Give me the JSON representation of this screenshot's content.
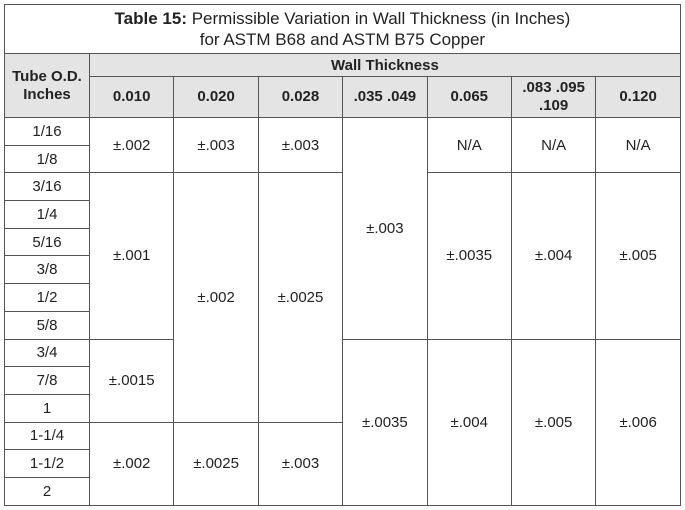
{
  "title": {
    "label": "Table 15:",
    "line1": "Permissible Variation in Wall Thickness (in Inches)",
    "line2": "for ASTM B68 and ASTM B75 Copper"
  },
  "table": {
    "row_header": "Tube O.D. Inches",
    "group_header": "Wall Thickness",
    "columns": [
      {
        "header": "0.010",
        "cells": [
          "±.002",
          "±.001",
          "±.0015",
          "±.002"
        ]
      },
      {
        "header": "0.020",
        "cells": [
          "±.003",
          "±.002",
          "±.0025"
        ]
      },
      {
        "header": "0.028",
        "cells": [
          "±.003",
          "±.0025",
          "±.003"
        ]
      },
      {
        "header": ".035 .049",
        "cells": [
          "±.003",
          "±.0035"
        ]
      },
      {
        "header": "0.065",
        "cells": [
          "N/A",
          "±.0035",
          "±.004"
        ]
      },
      {
        "header": ".083 .095 .109",
        "cells": [
          "N/A",
          "±.004",
          "±.005"
        ]
      },
      {
        "header": "0.120",
        "cells": [
          "N/A",
          "±.005",
          "±.006"
        ]
      }
    ],
    "sizes": [
      "1/16",
      "1/8",
      "3/16",
      "1/4",
      "5/16",
      "3/8",
      "1/2",
      "5/8",
      "3/4",
      "7/8",
      "1",
      "1-1/4",
      "1-1/2",
      "2"
    ]
  }
}
